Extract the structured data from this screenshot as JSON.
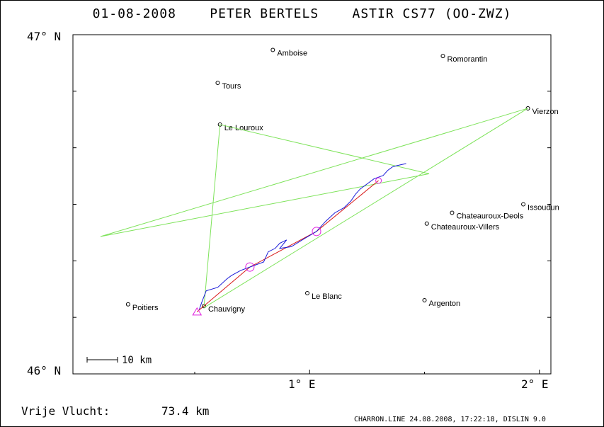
{
  "title": "01-08-2008    PETER BERTELS    ASTIR CS77 (OO-ZWZ)",
  "axis": {
    "lat_top": "47° N",
    "lat_bottom": "46° N",
    "lon_1": "1° E",
    "lon_2": "2° E"
  },
  "scale_label": "10 km",
  "distance": {
    "label": "Vrije Vlucht:",
    "value": "73.4 km"
  },
  "credit": "CHARRON.LINE 24.08.2008, 17:22:18, DISLIN 9.0",
  "colors": {
    "task_line": "#7ee35a",
    "track": "#1a1ad8",
    "turnpoint_line": "#d81a1a",
    "marker": "#e020e0"
  },
  "places": [
    {
      "name": "Amboise",
      "lon": 0.84,
      "lat": 46.955
    },
    {
      "name": "Romorantin",
      "lon": 1.58,
      "lat": 46.937
    },
    {
      "name": "Tours",
      "lon": 0.6,
      "lat": 46.858
    },
    {
      "name": "Vierzon",
      "lon": 1.95,
      "lat": 46.783
    },
    {
      "name": "Le Louroux",
      "lon": 0.61,
      "lat": 46.735
    },
    {
      "name": "Issoudun",
      "lon": 1.93,
      "lat": 46.5
    },
    {
      "name": "Chateauroux-Deols",
      "lon": 1.62,
      "lat": 46.475
    },
    {
      "name": "Chateauroux-Villers",
      "lon": 1.51,
      "lat": 46.443
    },
    {
      "name": "Le Blanc",
      "lon": 0.99,
      "lat": 46.238
    },
    {
      "name": "Argenton",
      "lon": 1.5,
      "lat": 46.217
    },
    {
      "name": "Poitiers",
      "lon": 0.21,
      "lat": 46.205
    },
    {
      "name": "Chauvigny",
      "lon": 0.54,
      "lat": 46.2
    }
  ],
  "task_polyline": [
    {
      "lon": 0.54,
      "lat": 46.195
    },
    {
      "lon": 0.61,
      "lat": 46.735
    },
    {
      "lon": 1.52,
      "lat": 46.59
    },
    {
      "lon": 0.09,
      "lat": 46.405
    },
    {
      "lon": 1.95,
      "lat": 46.783
    },
    {
      "lon": 0.54,
      "lat": 46.195
    }
  ],
  "turnpoint_line": [
    {
      "lon": 0.51,
      "lat": 46.183
    },
    {
      "lon": 0.74,
      "lat": 46.315
    },
    {
      "lon": 1.03,
      "lat": 46.42
    },
    {
      "lon": 1.3,
      "lat": 46.57
    }
  ],
  "track": [
    {
      "lon": 0.52,
      "lat": 46.19
    },
    {
      "lon": 0.53,
      "lat": 46.21
    },
    {
      "lon": 0.55,
      "lat": 46.245
    },
    {
      "lon": 0.6,
      "lat": 46.255
    },
    {
      "lon": 0.64,
      "lat": 46.28
    },
    {
      "lon": 0.66,
      "lat": 46.29
    },
    {
      "lon": 0.7,
      "lat": 46.305
    },
    {
      "lon": 0.74,
      "lat": 46.315
    },
    {
      "lon": 0.8,
      "lat": 46.33
    },
    {
      "lon": 0.82,
      "lat": 46.36
    },
    {
      "lon": 0.85,
      "lat": 46.37
    },
    {
      "lon": 0.87,
      "lat": 46.385
    },
    {
      "lon": 0.9,
      "lat": 46.395
    },
    {
      "lon": 0.87,
      "lat": 46.37
    },
    {
      "lon": 0.92,
      "lat": 46.375
    },
    {
      "lon": 0.98,
      "lat": 46.4
    },
    {
      "lon": 1.03,
      "lat": 46.42
    },
    {
      "lon": 1.07,
      "lat": 46.45
    },
    {
      "lon": 1.11,
      "lat": 46.475
    },
    {
      "lon": 1.15,
      "lat": 46.49
    },
    {
      "lon": 1.18,
      "lat": 46.51
    },
    {
      "lon": 1.2,
      "lat": 46.53
    },
    {
      "lon": 1.22,
      "lat": 46.545
    },
    {
      "lon": 1.25,
      "lat": 46.56
    },
    {
      "lon": 1.28,
      "lat": 46.575
    },
    {
      "lon": 1.32,
      "lat": 46.585
    },
    {
      "lon": 1.34,
      "lat": 46.6
    },
    {
      "lon": 1.36,
      "lat": 46.61
    },
    {
      "lon": 1.38,
      "lat": 46.614
    },
    {
      "lon": 1.42,
      "lat": 46.62
    }
  ],
  "markers": [
    {
      "kind": "triangle",
      "lon": 0.51,
      "lat": 46.182
    },
    {
      "kind": "circle",
      "lon": 0.74,
      "lat": 46.315
    },
    {
      "kind": "circle",
      "lon": 1.03,
      "lat": 46.42
    },
    {
      "kind": "circle-small",
      "lon": 1.3,
      "lat": 46.57
    }
  ]
}
